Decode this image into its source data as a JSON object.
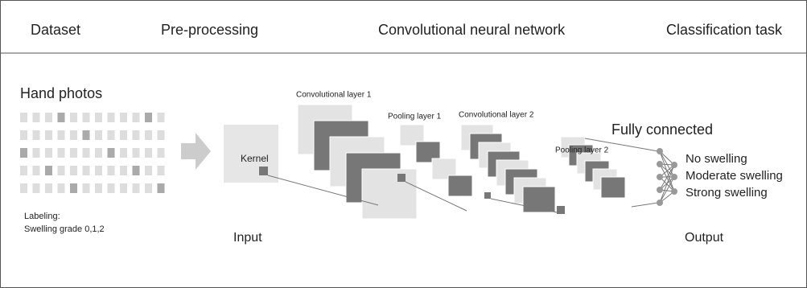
{
  "header": {
    "stages": [
      "Dataset",
      "Pre-processing",
      "Convolutional neural network",
      "Classification task"
    ]
  },
  "dataset": {
    "title": "Hand photos",
    "labeling": [
      "Labeling:",
      "Swelling grade 0,1,2"
    ]
  },
  "network": {
    "kernel": "Kernel",
    "input": "Input",
    "layers": [
      "Convolutional layer 1",
      "Pooling layer 1",
      "Convolutional layer 2",
      "Pooling layer 2"
    ],
    "fully_connected": "Fully connected"
  },
  "output": {
    "classes": [
      "No swelling",
      "Moderate swelling",
      "Strong swelling"
    ],
    "label": "Output"
  }
}
